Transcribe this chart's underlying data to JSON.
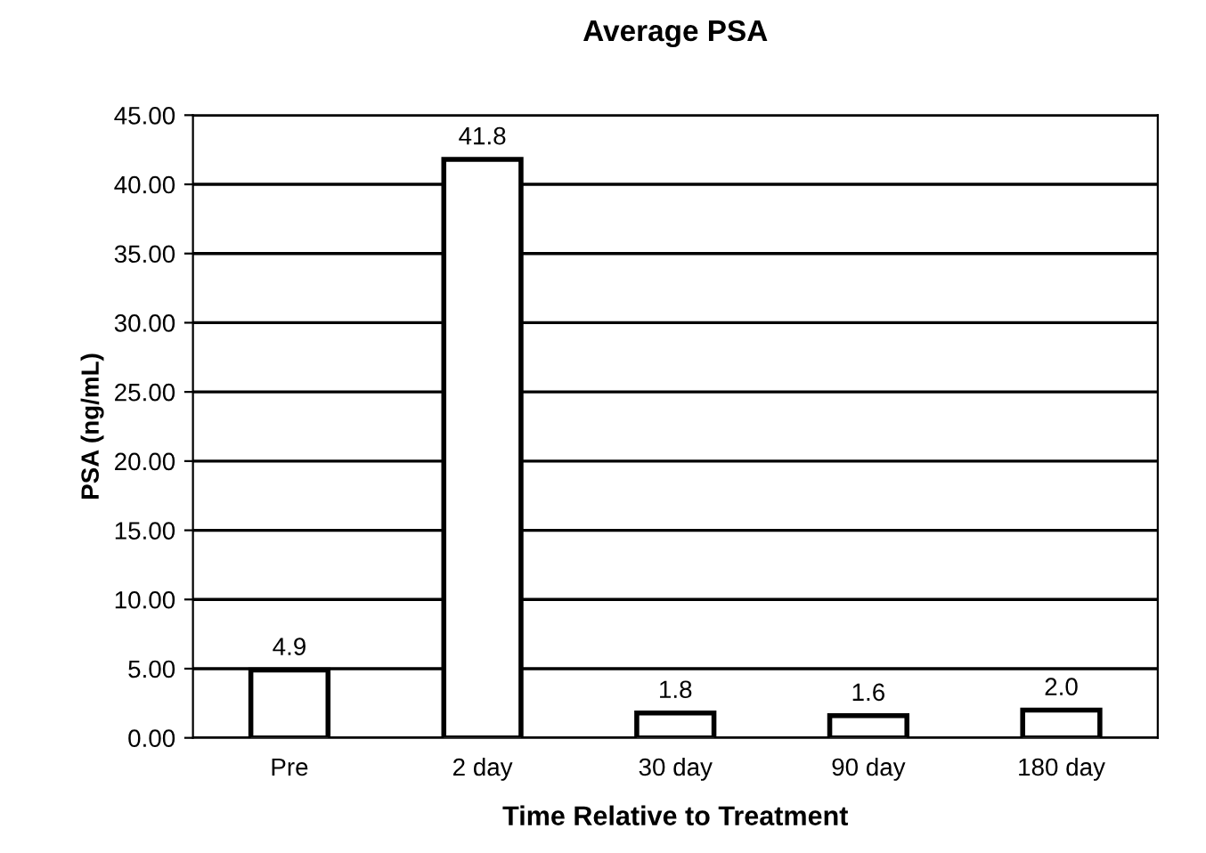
{
  "chart_data": {
    "type": "bar",
    "title": "Average PSA",
    "xlabel": "Time Relative to Treatment",
    "ylabel": "PSA (ng/mL)",
    "categories": [
      "Pre",
      "2 day",
      "30 day",
      "90 day",
      "180 day"
    ],
    "values": [
      4.9,
      41.8,
      1.8,
      1.6,
      2.0
    ],
    "value_labels": [
      "4.9",
      "41.8",
      "1.8",
      "1.6",
      "2.0"
    ],
    "color": "#ffffff",
    "ylim": [
      0,
      45
    ],
    "yticks": [
      {
        "value": 0,
        "label": "0.00"
      },
      {
        "value": 5,
        "label": "5.00"
      },
      {
        "value": 10,
        "label": "10.00"
      },
      {
        "value": 15,
        "label": "15.00"
      },
      {
        "value": 20,
        "label": "20.00"
      },
      {
        "value": 25,
        "label": "25.00"
      },
      {
        "value": 30,
        "label": "30.00"
      },
      {
        "value": 35,
        "label": "35.00"
      },
      {
        "value": 40,
        "label": "40.00"
      },
      {
        "value": 45,
        "label": "45.00"
      }
    ],
    "grid": "y",
    "legend": false
  }
}
